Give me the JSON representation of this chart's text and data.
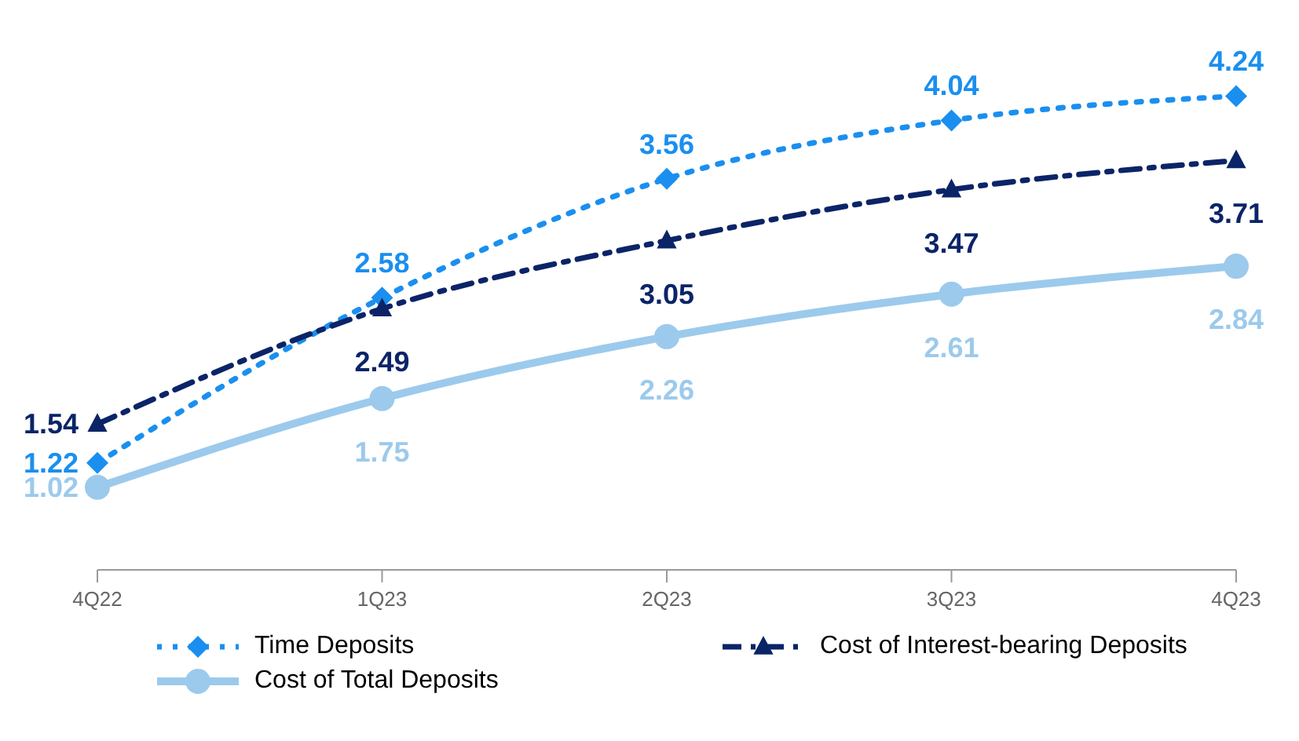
{
  "chart_data": {
    "type": "line",
    "categories": [
      "4Q22",
      "1Q23",
      "2Q23",
      "3Q23",
      "4Q23"
    ],
    "series": [
      {
        "name": "Time Deposits",
        "color": "#1a8ff0",
        "values": [
          1.22,
          2.58,
          3.56,
          4.04,
          4.24
        ],
        "marker": "diamond",
        "line_style": "dotted"
      },
      {
        "name": "Cost of Interest-bearing Deposits",
        "color": "#0b2468",
        "values": [
          1.54,
          2.49,
          3.05,
          3.47,
          3.71
        ],
        "marker": "triangle",
        "line_style": "dashdot"
      },
      {
        "name": "Cost of Total Deposits",
        "color": "#9ccaec",
        "values": [
          1.02,
          1.75,
          2.26,
          2.61,
          2.84
        ],
        "marker": "circle",
        "line_style": "solid"
      }
    ],
    "data_labels": true,
    "legend": "bottom",
    "grid": false
  }
}
